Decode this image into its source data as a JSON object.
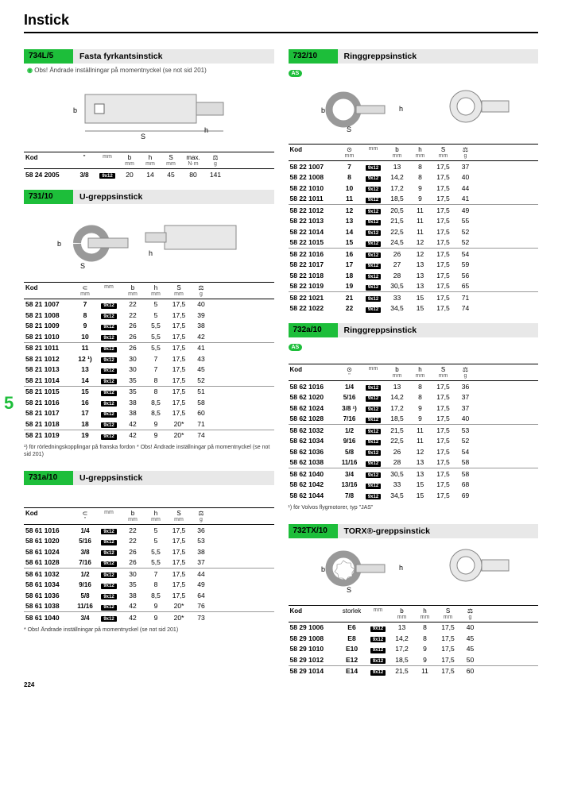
{
  "page_title": "Instick",
  "page_number": "224",
  "tab_number": "5",
  "badge_text": "9x12",
  "as_badge": "AS",
  "sections": {
    "s734L5": {
      "code": "734L/5",
      "name": "Fasta fyrkantsinstick",
      "note": "Obs! Ändrade inställningar på momentnyckel\n(se not sid 201)",
      "headers": [
        "Kod",
        "\"",
        "",
        "b",
        "h",
        "S",
        "max.",
        "⚖"
      ],
      "units": [
        "",
        "",
        "mm",
        "mm",
        "mm",
        "mm",
        "N·m",
        "g"
      ],
      "widths": [
        62,
        28,
        30,
        26,
        26,
        26,
        30,
        26
      ],
      "rows": [
        [
          "58 24 2005",
          "3/8",
          "9x12",
          "20",
          "14",
          "45",
          "80",
          "141"
        ]
      ]
    },
    "s73110": {
      "code": "731/10",
      "name": "U-greppsinstick",
      "headers": [
        "Kod",
        "⊂",
        "",
        "b",
        "h",
        "S",
        "⚖"
      ],
      "units": [
        "",
        "mm",
        "mm",
        "mm",
        "mm",
        "mm",
        "g"
      ],
      "widths": [
        62,
        30,
        30,
        30,
        28,
        30,
        26
      ],
      "rows": [
        [
          "58 21 1007",
          "7",
          "9x12",
          "22",
          "5",
          "17,5",
          "40"
        ],
        [
          "58 21 1008",
          "8",
          "9x12",
          "22",
          "5",
          "17,5",
          "39"
        ],
        [
          "58 21 1009",
          "9",
          "9x12",
          "26",
          "5,5",
          "17,5",
          "38"
        ],
        [
          "58 21 1010",
          "10",
          "9x12",
          "26",
          "5,5",
          "17,5",
          "42"
        ]
      ],
      "groups2": [
        [
          "58 21 1011",
          "11",
          "9x12",
          "26",
          "5,5",
          "17,5",
          "41"
        ],
        [
          "58 21 1012",
          "12 ¹)",
          "9x12",
          "30",
          "7",
          "17,5",
          "43"
        ],
        [
          "58 21 1013",
          "13",
          "9x12",
          "30",
          "7",
          "17,5",
          "45"
        ],
        [
          "58 21 1014",
          "14",
          "9x12",
          "35",
          "8",
          "17,5",
          "52"
        ]
      ],
      "groups3": [
        [
          "58 21 1015",
          "15",
          "9x12",
          "35",
          "8",
          "17,5",
          "51"
        ],
        [
          "58 21 1016",
          "16",
          "9x12",
          "38",
          "8,5",
          "17,5",
          "58"
        ],
        [
          "58 21 1017",
          "17",
          "9x12",
          "38",
          "8,5",
          "17,5",
          "60"
        ],
        [
          "58 21 1018",
          "18",
          "9x12",
          "42",
          "9",
          "20*",
          "71"
        ]
      ],
      "groups4": [
        [
          "58 21 1019",
          "19",
          "9x12",
          "42",
          "9",
          "20*",
          "74"
        ]
      ],
      "foot": "¹) för rörledningskopplingar på franska fordon\n* Obs! Ändrade inställningar på momentnyckel (se not sid 201)"
    },
    "s731a10": {
      "code": "731a/10",
      "name": "U-greppsinstick",
      "headers": [
        "Kod",
        "⊂",
        "",
        "b",
        "h",
        "S",
        "⚖"
      ],
      "units": [
        "",
        "\"",
        "mm",
        "mm",
        "mm",
        "mm",
        "g"
      ],
      "widths": [
        62,
        30,
        30,
        30,
        28,
        30,
        26
      ],
      "rows": [
        [
          "58 61 1016",
          "1/4",
          "9x12",
          "22",
          "5",
          "17,5",
          "36"
        ],
        [
          "58 61 1020",
          "5/16",
          "9x12",
          "22",
          "5",
          "17,5",
          "53"
        ],
        [
          "58 61 1024",
          "3/8",
          "9x12",
          "26",
          "5,5",
          "17,5",
          "38"
        ],
        [
          "58 61 1028",
          "7/16",
          "9x12",
          "26",
          "5,5",
          "17,5",
          "37"
        ]
      ],
      "groups2": [
        [
          "58 61 1032",
          "1/2",
          "9x12",
          "30",
          "7",
          "17,5",
          "44"
        ],
        [
          "58 61 1034",
          "9/16",
          "9x12",
          "35",
          "8",
          "17,5",
          "49"
        ],
        [
          "58 61 1036",
          "5/8",
          "9x12",
          "38",
          "8,5",
          "17,5",
          "64"
        ],
        [
          "58 61 1038",
          "11/16",
          "9x12",
          "42",
          "9",
          "20*",
          "76"
        ]
      ],
      "groups3": [
        [
          "58 61 1040",
          "3/4",
          "9x12",
          "42",
          "9",
          "20*",
          "73"
        ]
      ],
      "foot": "* Obs! Ändrade inställningar på momentnyckel (se not sid 201)"
    },
    "s73210": {
      "code": "732/10",
      "name": "Ringgreppsinstick",
      "headers": [
        "Kod",
        "⊙",
        "",
        "b",
        "h",
        "S",
        "⚖"
      ],
      "units": [
        "",
        "mm",
        "mm",
        "mm",
        "mm",
        "mm",
        "g"
      ],
      "widths": [
        62,
        30,
        30,
        30,
        28,
        30,
        26
      ],
      "rows": [
        [
          "58 22 1007",
          "7",
          "9x12",
          "13",
          "8",
          "17,5",
          "37"
        ],
        [
          "58 22 1008",
          "8",
          "9x12",
          "14,2",
          "8",
          "17,5",
          "40"
        ],
        [
          "58 22 1010",
          "10",
          "9x12",
          "17,2",
          "9",
          "17,5",
          "44"
        ],
        [
          "58 22 1011",
          "11",
          "9x12",
          "18,5",
          "9",
          "17,5",
          "41"
        ]
      ],
      "groups2": [
        [
          "58 22 1012",
          "12",
          "9x12",
          "20,5",
          "11",
          "17,5",
          "49"
        ],
        [
          "58 22 1013",
          "13",
          "9x12",
          "21,5",
          "11",
          "17,5",
          "55"
        ],
        [
          "58 22 1014",
          "14",
          "9x12",
          "22,5",
          "11",
          "17,5",
          "52"
        ],
        [
          "58 22 1015",
          "15",
          "9x12",
          "24,5",
          "12",
          "17,5",
          "52"
        ]
      ],
      "groups3": [
        [
          "58 22 1016",
          "16",
          "9x12",
          "26",
          "12",
          "17,5",
          "54"
        ],
        [
          "58 22 1017",
          "17",
          "9x12",
          "27",
          "13",
          "17,5",
          "59"
        ],
        [
          "58 22 1018",
          "18",
          "9x12",
          "28",
          "13",
          "17,5",
          "56"
        ],
        [
          "58 22 1019",
          "19",
          "9x12",
          "30,5",
          "13",
          "17,5",
          "65"
        ]
      ],
      "groups4": [
        [
          "58 22 1021",
          "21",
          "9x12",
          "33",
          "15",
          "17,5",
          "71"
        ],
        [
          "58 22 1022",
          "22",
          "9x12",
          "34,5",
          "15",
          "17,5",
          "74"
        ]
      ]
    },
    "s732a10": {
      "code": "732a/10",
      "name": "Ringgreppsinstick",
      "headers": [
        "Kod",
        "⊙",
        "",
        "b",
        "h",
        "S",
        "⚖"
      ],
      "units": [
        "",
        "\"",
        "mm",
        "mm",
        "mm",
        "mm",
        "g"
      ],
      "widths": [
        62,
        30,
        30,
        30,
        28,
        30,
        26
      ],
      "rows": [
        [
          "58 62 1016",
          "1/4",
          "9x12",
          "13",
          "8",
          "17,5",
          "36"
        ],
        [
          "58 62 1020",
          "5/16",
          "9x12",
          "14,2",
          "8",
          "17,5",
          "37"
        ],
        [
          "58 62 1024",
          "3/8 ¹)",
          "9x12",
          "17,2",
          "9",
          "17,5",
          "37"
        ],
        [
          "58 62 1028",
          "7/16",
          "9x12",
          "18,5",
          "9",
          "17,5",
          "40"
        ]
      ],
      "groups2": [
        [
          "58 62 1032",
          "1/2",
          "9x12",
          "21,5",
          "11",
          "17,5",
          "53"
        ],
        [
          "58 62 1034",
          "9/16",
          "9x12",
          "22,5",
          "11",
          "17,5",
          "52"
        ],
        [
          "58 62 1036",
          "5/8",
          "9x12",
          "26",
          "12",
          "17,5",
          "54"
        ],
        [
          "58 62 1038",
          "11/16",
          "9x12",
          "28",
          "13",
          "17,5",
          "58"
        ]
      ],
      "groups3": [
        [
          "58 62 1040",
          "3/4",
          "9x12",
          "30,5",
          "13",
          "17,5",
          "58"
        ],
        [
          "58 62 1042",
          "13/16",
          "9x12",
          "33",
          "15",
          "17,5",
          "68"
        ],
        [
          "58 62 1044",
          "7/8",
          "9x12",
          "34,5",
          "15",
          "17,5",
          "69"
        ]
      ],
      "foot": "¹) för Volvos flygmotorer, typ \"JAS\""
    },
    "s732TX10": {
      "code": "732TX/10",
      "name": "TORX®-greppsinstick",
      "headers": [
        "Kod",
        "storlek",
        "",
        "b",
        "h",
        "S",
        "⚖"
      ],
      "units": [
        "",
        "",
        "mm",
        "mm",
        "mm",
        "mm",
        "g"
      ],
      "widths": [
        62,
        36,
        30,
        30,
        28,
        30,
        26
      ],
      "rows": [
        [
          "58 29 1006",
          "E6",
          "9x12",
          "13",
          "8",
          "17,5",
          "40"
        ],
        [
          "58 29 1008",
          "E8",
          "9x12",
          "14,2",
          "8",
          "17,5",
          "45"
        ],
        [
          "58 29 1010",
          "E10",
          "9x12",
          "17,2",
          "9",
          "17,5",
          "45"
        ],
        [
          "58 29 1012",
          "E12",
          "9x12",
          "18,5",
          "9",
          "17,5",
          "50"
        ]
      ],
      "groups2": [
        [
          "58 29 1014",
          "E14",
          "9x12",
          "21,5",
          "11",
          "17,5",
          "60"
        ]
      ]
    }
  }
}
